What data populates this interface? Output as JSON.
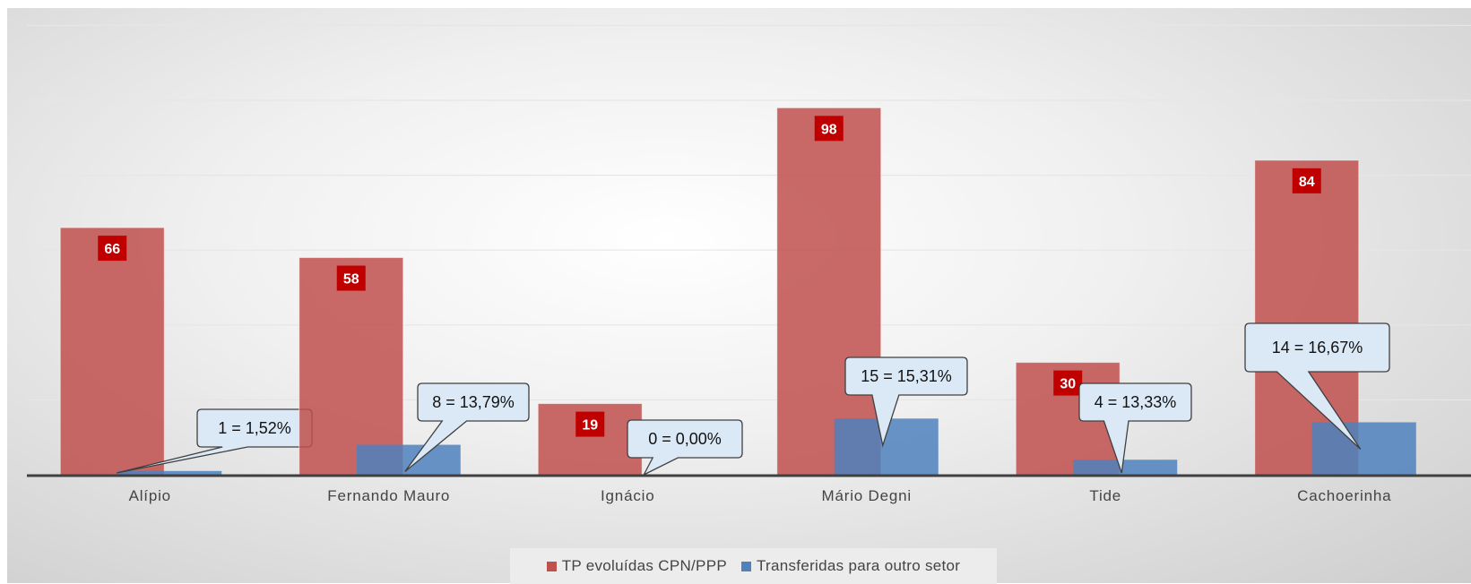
{
  "chart_data": {
    "type": "bar",
    "categories": [
      "Alípio",
      "Fernando Mauro",
      "Ignácio",
      "Mário Degni",
      "Tide",
      "Cachoerinha"
    ],
    "series": [
      {
        "name": "TP evoluídas CPN/PPP",
        "color": "#c0504d",
        "values": [
          66,
          58,
          19,
          98,
          30,
          84
        ],
        "labels": [
          "66",
          "58",
          "19",
          "98",
          "30",
          "84"
        ]
      },
      {
        "name": "Transferidas para outro setor",
        "color": "#4f81bd",
        "values": [
          1,
          8,
          0,
          15,
          4,
          14
        ],
        "labels": [
          "1 = 1,52%",
          "8 = 13,79%",
          "0 = 0,00%",
          "15 = 15,31%",
          "4 = 13,33%",
          "14 = 16,67%"
        ]
      }
    ],
    "ylim": [
      0,
      120
    ],
    "grid": true,
    "legend": "bottom",
    "colors": {
      "label_badge": "#c00000",
      "callout_fill": "#dbe9f7",
      "callout_stroke": "#404040",
      "axis": "#404040"
    }
  }
}
